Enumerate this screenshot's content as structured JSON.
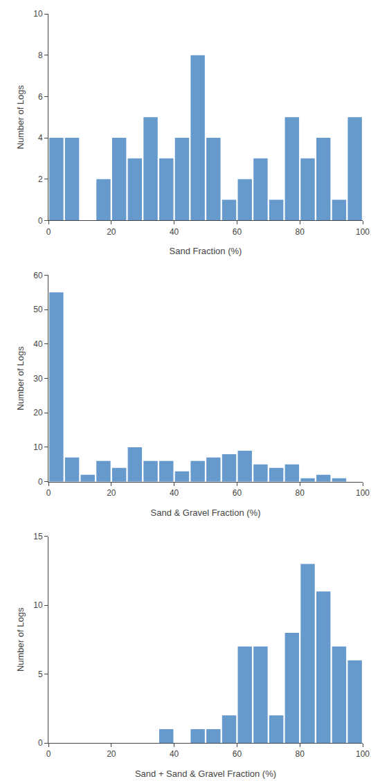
{
  "chart_data": [
    {
      "type": "histogram",
      "xlabel": "Sand Fraction (%)",
      "ylabel": "Number of Logs",
      "bins": [
        0,
        5,
        10,
        15,
        20,
        25,
        30,
        35,
        40,
        45,
        50,
        55,
        60,
        65,
        70,
        75,
        80,
        85,
        90,
        95,
        100
      ],
      "values": [
        4,
        4,
        0,
        2,
        4,
        3,
        5,
        3,
        4,
        8,
        4,
        1,
        2,
        3,
        1,
        5,
        3,
        4,
        1,
        5
      ],
      "color": "#6699CC",
      "xlim": [
        0,
        100
      ],
      "xticks": [
        0,
        20,
        40,
        60,
        80,
        100
      ],
      "ylim": [
        0,
        10
      ],
      "yticks": [
        0,
        2,
        4,
        6,
        8,
        10
      ],
      "grid": false
    },
    {
      "type": "histogram",
      "xlabel": "Sand & Gravel Fraction (%)",
      "ylabel": "Number of Logs",
      "bins": [
        0,
        5,
        10,
        15,
        20,
        25,
        30,
        35,
        40,
        45,
        50,
        55,
        60,
        65,
        70,
        75,
        80,
        85,
        90,
        95,
        100
      ],
      "values": [
        55,
        7,
        2,
        6,
        4,
        10,
        6,
        6,
        3,
        6,
        7,
        8,
        9,
        5,
        4,
        5,
        1,
        2,
        1,
        0
      ],
      "color": "#6699CC",
      "xlim": [
        0,
        100
      ],
      "xticks": [
        0,
        20,
        40,
        60,
        80,
        100
      ],
      "ylim": [
        0,
        60
      ],
      "yticks": [
        0,
        10,
        20,
        30,
        40,
        50,
        60
      ],
      "grid": false
    },
    {
      "type": "histogram",
      "xlabel": "Sand + Sand & Gravel Fraction (%)",
      "ylabel": "Number of Logs",
      "bins": [
        0,
        5,
        10,
        15,
        20,
        25,
        30,
        35,
        40,
        45,
        50,
        55,
        60,
        65,
        70,
        75,
        80,
        85,
        90,
        95,
        100
      ],
      "values": [
        0,
        0,
        0,
        0,
        0,
        0,
        0,
        1,
        0,
        1,
        1,
        2,
        7,
        7,
        2,
        8,
        13,
        11,
        7,
        6
      ],
      "color": "#6699CC",
      "xlim": [
        0,
        100
      ],
      "xticks": [
        0,
        20,
        40,
        60,
        80,
        100
      ],
      "ylim": [
        0,
        15
      ],
      "yticks": [
        0,
        5,
        10,
        15
      ],
      "grid": false
    }
  ]
}
